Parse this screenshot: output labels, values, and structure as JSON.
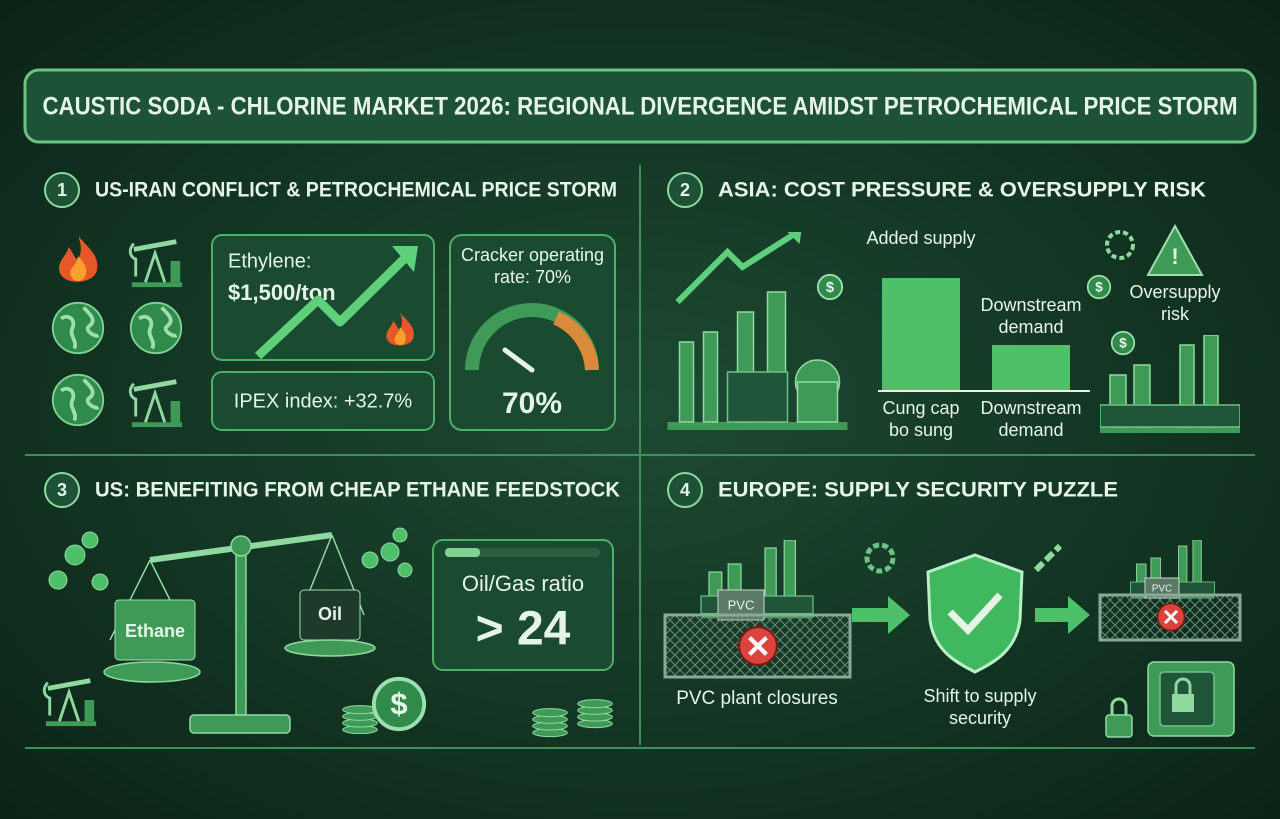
{
  "header": {
    "title": "CAUSTIC SODA - CHLORINE MARKET 2026: REGIONAL DIVERGENCE AMIDST PETROCHEMICAL PRICE STORM"
  },
  "panels": [
    {
      "number": "1",
      "heading": "US-IRAN CONFLICT & PETROCHEMICAL PRICE STORM",
      "ethylene_label": "Ethylene:",
      "ethylene_price": "$1,500/ton",
      "ipex": "IPEX index: +32.7%",
      "cracker_rate": "Cracker operating rate: 70%",
      "gauge_label": "70%"
    },
    {
      "number": "2",
      "heading": "ASIA: COST PRESSURE & OVERSUPPLY RISK",
      "added_supply": "Added supply",
      "downstream_demand": "Downstream demand",
      "risk": "Oversupply risk",
      "added_supply_caption": "Cung cap bo sung",
      "downstream_caption": "Downstream demand"
    },
    {
      "number": "3",
      "heading": "US: BENEFITING FROM CHEAP ETHANE FEEDSTOCK",
      "ethane": "Ethane",
      "oil": "Oil",
      "ratio_label": "Oil/Gas ratio",
      "ratio_value": "> 24"
    },
    {
      "number": "4",
      "heading": "EUROPE: SUPPLY SECURITY PUZZLE",
      "pvc_left": "PVC",
      "pvc_right": "PVC",
      "closures": "PVC plant closures",
      "shift": "Shift to supply security"
    }
  ]
}
